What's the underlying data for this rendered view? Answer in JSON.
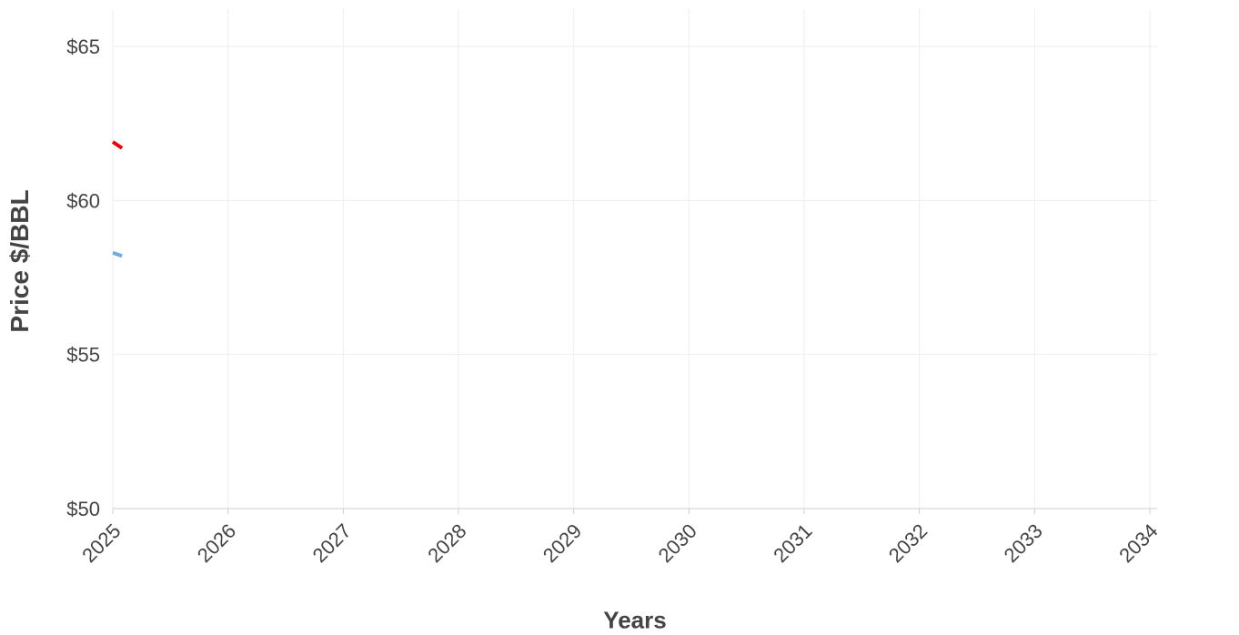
{
  "chart_data": {
    "type": "line",
    "title": "",
    "xlabel": "Years",
    "ylabel": "Price $/BBL",
    "xlim": [
      2025,
      2034
    ],
    "ylim": [
      50,
      65
    ],
    "x_ticks": [
      "2025",
      "2026",
      "2027",
      "2028",
      "2029",
      "2030",
      "2031",
      "2032",
      "2033",
      "2034"
    ],
    "y_ticks": [
      {
        "value": 50,
        "label": "$50"
      },
      {
        "value": 55,
        "label": "$55"
      },
      {
        "value": 60,
        "label": "$60"
      },
      {
        "value": 65,
        "label": "$65"
      }
    ],
    "grid": true,
    "series": [
      {
        "color": "#e8000b",
        "x": [
          2025.0,
          2025.08
        ],
        "y": [
          61.9,
          61.7
        ]
      },
      {
        "color": "#74acd9",
        "x": [
          2025.0,
          2025.08
        ],
        "y": [
          58.3,
          58.2
        ]
      }
    ]
  }
}
